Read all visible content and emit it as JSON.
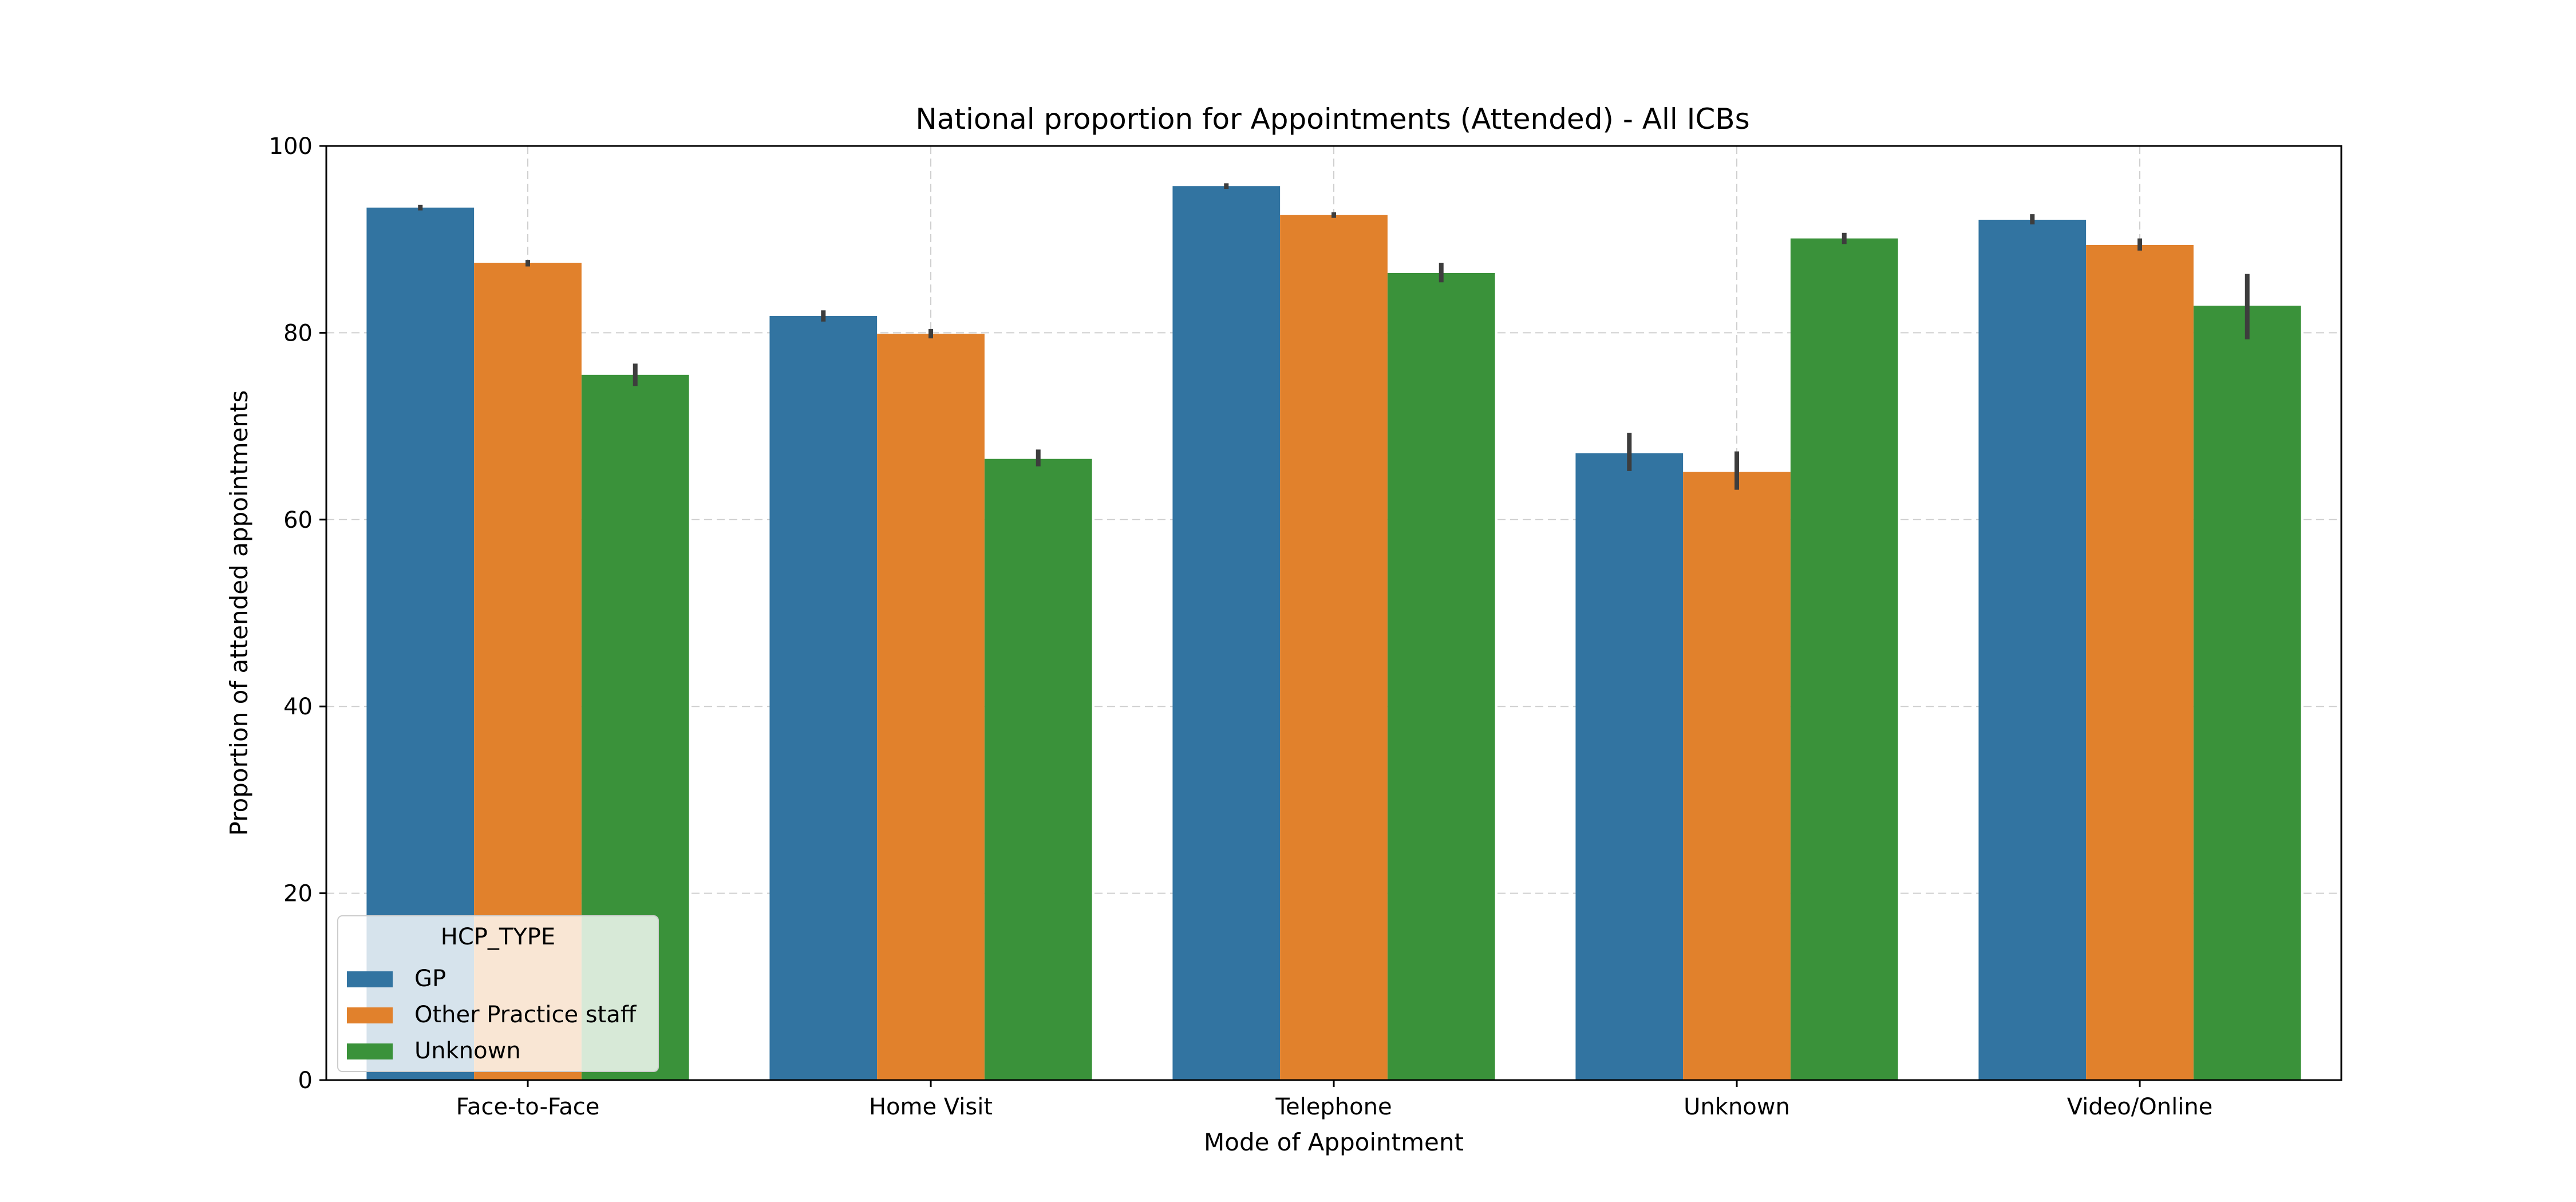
{
  "chart_data": {
    "type": "bar",
    "title": "National proportion for Appointments (Attended) - All ICBs",
    "xlabel": "Mode of Appointment",
    "ylabel": "Proportion of attended appointments",
    "categories": [
      "Face-to-Face",
      "Home Visit",
      "Telephone",
      "Unknown",
      "Video/Online"
    ],
    "ylim": [
      0,
      100
    ],
    "yticks": [
      0,
      20,
      40,
      60,
      80,
      100
    ],
    "grid": true,
    "legend": {
      "title": "HCP_TYPE",
      "placement": "lower-left"
    },
    "series": [
      {
        "name": "GP",
        "color": "#3274a1",
        "values": [
          93.4,
          81.8,
          95.7,
          67.1,
          92.1
        ],
        "err_low": [
          93.1,
          81.2,
          95.4,
          65.2,
          91.6
        ],
        "err_high": [
          93.7,
          82.4,
          96.0,
          69.3,
          92.7
        ]
      },
      {
        "name": "Other Practice staff",
        "color": "#e1812c",
        "values": [
          87.5,
          79.9,
          92.6,
          65.1,
          89.4
        ],
        "err_low": [
          87.1,
          79.4,
          92.3,
          63.2,
          88.8
        ],
        "err_high": [
          87.8,
          80.4,
          92.9,
          67.3,
          90.1
        ]
      },
      {
        "name": "Unknown",
        "color": "#3a923a",
        "values": [
          75.5,
          66.5,
          86.4,
          90.1,
          82.9
        ],
        "err_low": [
          74.3,
          65.7,
          85.4,
          89.5,
          79.3
        ],
        "err_high": [
          76.7,
          67.5,
          87.5,
          90.7,
          86.3
        ]
      }
    ]
  }
}
